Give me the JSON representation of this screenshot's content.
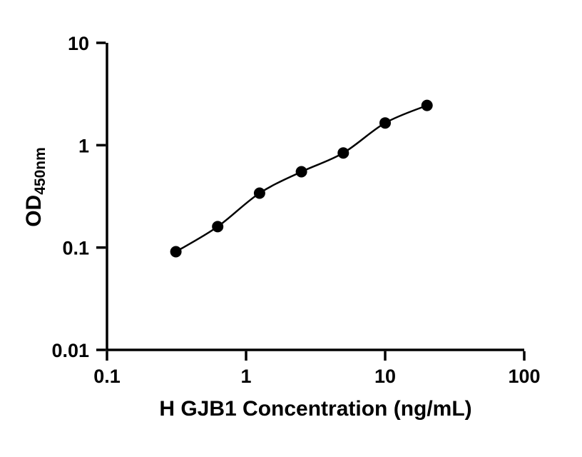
{
  "chart_data": {
    "type": "scatter",
    "title": "",
    "xlabel": "H GJB1 Concentration (ng/mL)",
    "ylabel_main": "OD",
    "ylabel_sub": "450nm",
    "x_scale": "log",
    "y_scale": "log",
    "xlim": [
      0.1,
      100
    ],
    "ylim": [
      0.01,
      10
    ],
    "grid": false,
    "legend": "none",
    "x_ticks": [
      {
        "v": 0.1,
        "label": "0.1"
      },
      {
        "v": 1,
        "label": "1"
      },
      {
        "v": 10,
        "label": "10"
      },
      {
        "v": 100,
        "label": "100"
      }
    ],
    "y_ticks": [
      {
        "v": 0.01,
        "label": "0.01"
      },
      {
        "v": 0.1,
        "label": "0.1"
      },
      {
        "v": 1,
        "label": "1"
      },
      {
        "v": 10,
        "label": "10"
      }
    ],
    "points": [
      {
        "x": 0.313,
        "y": 0.091
      },
      {
        "x": 0.625,
        "y": 0.16
      },
      {
        "x": 1.25,
        "y": 0.34
      },
      {
        "x": 2.5,
        "y": 0.55
      },
      {
        "x": 5,
        "y": 0.84
      },
      {
        "x": 10,
        "y": 1.65
      },
      {
        "x": 20,
        "y": 2.45
      }
    ],
    "line": true,
    "axis_color": "#000000",
    "line_color": "#000000",
    "marker_color": "#000000"
  }
}
